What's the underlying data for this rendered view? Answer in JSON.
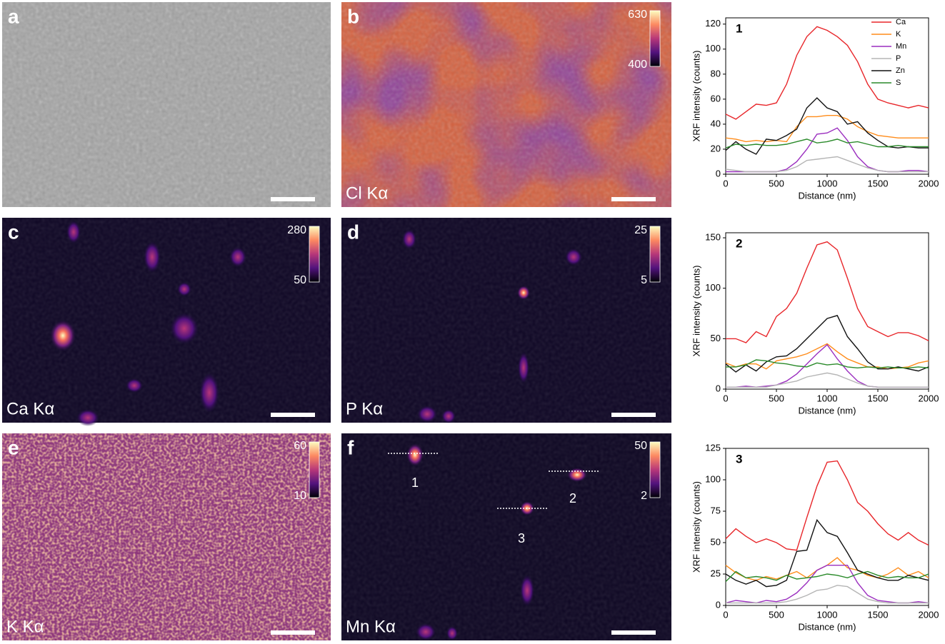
{
  "panels": [
    {
      "letter": "a"
    },
    {
      "letter": "b",
      "label": "Cl Kα",
      "cbar_max": 630,
      "cbar_min": 400
    },
    {
      "letter": "c",
      "label": "Ca Kα",
      "cbar_max": 280,
      "cbar_min": 50
    },
    {
      "letter": "d",
      "label": "P Kα",
      "cbar_max": 25,
      "cbar_min": 5
    },
    {
      "letter": "e",
      "label": "K Kα",
      "cbar_max": 60,
      "cbar_min": 10
    },
    {
      "letter": "f",
      "label": "Mn Kα",
      "cbar_max": 50,
      "cbar_min": 2,
      "markers": [
        "1",
        "2",
        "3"
      ]
    }
  ],
  "chart_data": [
    {
      "type": "line",
      "annotation": "1",
      "xlabel": "Distance (nm)",
      "ylabel": "XRF intensity (counts)",
      "xlim": [
        0,
        2000
      ],
      "xticks": [
        0,
        500,
        1000,
        1500,
        2000
      ],
      "ylim": [
        0,
        125
      ],
      "yticks": [
        0,
        20,
        40,
        60,
        80,
        100,
        120
      ],
      "legend": "upper right",
      "x": [
        0,
        100,
        200,
        300,
        400,
        500,
        600,
        700,
        800,
        900,
        1000,
        1100,
        1200,
        1300,
        1400,
        1500,
        1600,
        1700,
        1800,
        1900,
        2000
      ],
      "series": [
        {
          "name": "Ca",
          "color": "#e8262a",
          "values": [
            48,
            44,
            50,
            56,
            55,
            57,
            72,
            95,
            110,
            118,
            115,
            110,
            103,
            90,
            72,
            60,
            57,
            55,
            53,
            55,
            53
          ]
        },
        {
          "name": "K",
          "color": "#ff8c1a",
          "values": [
            29,
            28,
            26,
            27,
            26,
            27,
            26,
            38,
            46,
            46,
            47,
            47,
            44,
            38,
            34,
            31,
            30,
            29,
            29,
            29,
            29
          ]
        },
        {
          "name": "Mn",
          "color": "#9b2fbf",
          "values": [
            2,
            2,
            2,
            2,
            2,
            2,
            4,
            10,
            20,
            32,
            33,
            37,
            27,
            14,
            6,
            3,
            2,
            2,
            3,
            3,
            2
          ]
        },
        {
          "name": "P",
          "color": "#b5b5b5",
          "values": [
            4,
            3,
            2,
            2,
            2,
            2,
            3,
            6,
            11,
            12,
            13,
            14,
            11,
            8,
            5,
            3,
            2,
            2,
            2,
            2,
            2
          ]
        },
        {
          "name": "Zn",
          "color": "#111111",
          "values": [
            19,
            26,
            20,
            16,
            28,
            27,
            31,
            36,
            53,
            61,
            53,
            50,
            40,
            42,
            33,
            27,
            22,
            21,
            22,
            21,
            21
          ]
        },
        {
          "name": "S",
          "color": "#2a8a2a",
          "values": [
            21,
            24,
            23,
            24,
            23,
            23,
            24,
            26,
            28,
            25,
            26,
            28,
            25,
            26,
            24,
            22,
            22,
            23,
            22,
            22,
            22
          ]
        }
      ]
    },
    {
      "type": "line",
      "annotation": "2",
      "xlabel": "Distance (nm)",
      "ylabel": "XRF intensity (counts)",
      "xlim": [
        0,
        2000
      ],
      "xticks": [
        0,
        500,
        1000,
        1500,
        2000
      ],
      "ylim": [
        0,
        155
      ],
      "yticks": [
        0,
        50,
        100,
        150
      ],
      "x": [
        0,
        100,
        200,
        300,
        400,
        500,
        600,
        700,
        800,
        900,
        1000,
        1100,
        1200,
        1300,
        1400,
        1500,
        1600,
        1700,
        1800,
        1900,
        2000
      ],
      "series": [
        {
          "color": "#e8262a",
          "values": [
            50,
            50,
            46,
            57,
            52,
            72,
            80,
            95,
            120,
            143,
            146,
            138,
            110,
            80,
            62,
            57,
            52,
            56,
            56,
            53,
            48
          ]
        },
        {
          "color": "#ff8c1a",
          "values": [
            26,
            22,
            25,
            25,
            20,
            28,
            30,
            32,
            35,
            40,
            45,
            37,
            30,
            26,
            22,
            22,
            20,
            21,
            22,
            26,
            28
          ]
        },
        {
          "color": "#9b2fbf",
          "values": [
            2,
            2,
            3,
            2,
            3,
            4,
            8,
            15,
            25,
            35,
            44,
            30,
            18,
            8,
            3,
            2,
            2,
            2,
            2,
            2,
            2
          ]
        },
        {
          "color": "#b5b5b5",
          "values": [
            2,
            2,
            2,
            2,
            2,
            4,
            6,
            8,
            12,
            14,
            16,
            14,
            10,
            6,
            3,
            2,
            2,
            2,
            2,
            2,
            2
          ]
        },
        {
          "color": "#111111",
          "values": [
            25,
            17,
            24,
            18,
            27,
            32,
            33,
            40,
            50,
            60,
            70,
            73,
            52,
            40,
            27,
            20,
            20,
            22,
            20,
            18,
            22
          ]
        },
        {
          "color": "#2a8a2a",
          "values": [
            22,
            22,
            24,
            29,
            28,
            26,
            25,
            23,
            22,
            26,
            24,
            25,
            22,
            21,
            22,
            21,
            22,
            21,
            21,
            22,
            21
          ]
        }
      ]
    },
    {
      "type": "line",
      "annotation": "3",
      "xlabel": "Distance (nm)",
      "ylabel": "XRF intensity (counts)",
      "xlim": [
        0,
        2000
      ],
      "xticks": [
        0,
        500,
        1000,
        1500,
        2000
      ],
      "ylim": [
        0,
        125
      ],
      "yticks": [
        0,
        25,
        50,
        75,
        100,
        125
      ],
      "x": [
        0,
        100,
        200,
        300,
        400,
        500,
        600,
        700,
        800,
        900,
        1000,
        1100,
        1200,
        1300,
        1400,
        1500,
        1600,
        1700,
        1800,
        1900,
        2000
      ],
      "series": [
        {
          "color": "#e8262a",
          "values": [
            53,
            61,
            55,
            50,
            53,
            50,
            45,
            44,
            70,
            95,
            114,
            115,
            100,
            82,
            75,
            65,
            57,
            52,
            58,
            52,
            48
          ]
        },
        {
          "color": "#ff8c1a",
          "values": [
            32,
            26,
            22,
            20,
            23,
            21,
            24,
            27,
            22,
            28,
            32,
            38,
            30,
            28,
            24,
            22,
            25,
            30,
            24,
            27,
            22
          ]
        },
        {
          "color": "#9b2fbf",
          "values": [
            2,
            4,
            3,
            2,
            4,
            3,
            5,
            10,
            18,
            28,
            32,
            32,
            32,
            18,
            8,
            4,
            3,
            2,
            2,
            3,
            2
          ]
        },
        {
          "color": "#b5b5b5",
          "values": [
            2,
            2,
            2,
            2,
            2,
            2,
            3,
            5,
            8,
            12,
            13,
            16,
            15,
            10,
            5,
            3,
            2,
            2,
            2,
            2,
            2
          ]
        },
        {
          "color": "#111111",
          "values": [
            25,
            20,
            17,
            20,
            15,
            16,
            20,
            43,
            44,
            68,
            58,
            55,
            42,
            28,
            25,
            22,
            20,
            20,
            24,
            22,
            20
          ]
        },
        {
          "color": "#2a8a2a",
          "values": [
            19,
            27,
            22,
            23,
            22,
            20,
            24,
            21,
            22,
            23,
            25,
            24,
            22,
            25,
            27,
            24,
            22,
            23,
            22,
            22,
            25
          ]
        }
      ]
    }
  ]
}
